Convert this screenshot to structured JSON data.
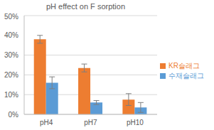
{
  "chart_data": {
    "type": "bar",
    "title": "pH effect on F sorption",
    "categories": [
      "pH4",
      "pH7",
      "pH10"
    ],
    "series": [
      {
        "name": "KR슬래그",
        "color": "#ED7D31",
        "values": [
          38,
          23.5,
          7.5
        ],
        "errors": [
          2,
          2,
          3
        ]
      },
      {
        "name": "수재슬래그",
        "color": "#5B9BD5",
        "values": [
          16,
          6,
          3.5
        ],
        "errors": [
          3,
          1,
          2.5
        ]
      }
    ],
    "ylim": [
      0,
      50
    ],
    "yticks": [
      {
        "value": 0,
        "label": "0%"
      },
      {
        "value": 10,
        "label": "10%"
      },
      {
        "value": 20,
        "label": "20%"
      },
      {
        "value": 30,
        "label": "30%"
      },
      {
        "value": 40,
        "label": "40%"
      },
      {
        "value": 50,
        "label": "50%"
      }
    ],
    "grid": true,
    "legend": "right"
  }
}
